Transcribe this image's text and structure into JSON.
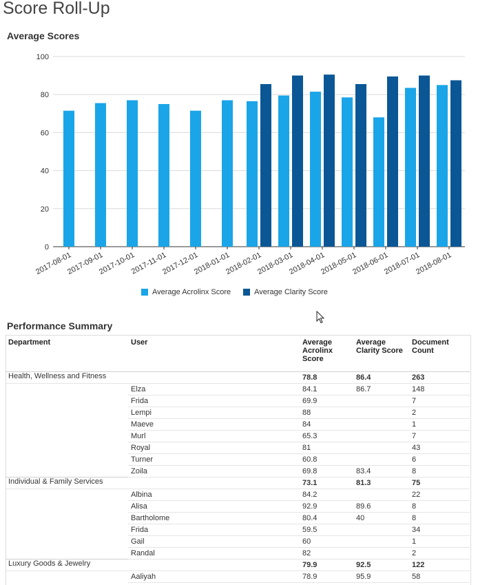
{
  "page": {
    "title": "Score Roll-Up"
  },
  "chart_section": {
    "title": "Average Scores"
  },
  "chart_data": {
    "type": "bar",
    "categories": [
      "2017-08-01",
      "2017-09-01",
      "2017-10-01",
      "2017-11-01",
      "2017-12-01",
      "2018-01-01",
      "2018-02-01",
      "2018-03-01",
      "2018-04-01",
      "2018-05-01",
      "2018-06-01",
      "2018-07-01",
      "2018-08-01"
    ],
    "series": [
      {
        "name": "Average Acrolinx Score",
        "color": "#1aa5e8",
        "values": [
          71.5,
          75.5,
          77,
          75,
          71.5,
          77,
          76.5,
          79.5,
          81.5,
          78.5,
          68,
          83.5,
          85
        ]
      },
      {
        "name": "Average Clarity Score",
        "color": "#0b5796",
        "values": [
          null,
          null,
          null,
          null,
          null,
          null,
          85.5,
          90,
          90.5,
          85.5,
          89.5,
          90,
          87.5
        ]
      }
    ],
    "yticks": [
      0,
      20,
      40,
      60,
      80,
      100
    ],
    "ylim": [
      0,
      100
    ],
    "grid": true,
    "legend_position": "bottom"
  },
  "table_section": {
    "title": "Performance Summary"
  },
  "table": {
    "headers": [
      "Department",
      "User",
      "Average Acrolinx Score",
      "Average Clarity Score",
      "Document Count"
    ],
    "groups": [
      {
        "department": "Health, Wellness and Fitness",
        "acrolinx": "78.8",
        "clarity": "86.4",
        "count": "263",
        "users": [
          {
            "name": "Elza",
            "acrolinx": "84.1",
            "clarity": "86.7",
            "count": "148"
          },
          {
            "name": "Frida",
            "acrolinx": "69.9",
            "clarity": "",
            "count": "7"
          },
          {
            "name": "Lempi",
            "acrolinx": "88",
            "clarity": "",
            "count": "2"
          },
          {
            "name": "Maeve",
            "acrolinx": "84",
            "clarity": "",
            "count": "1"
          },
          {
            "name": "Murl",
            "acrolinx": "65.3",
            "clarity": "",
            "count": "7"
          },
          {
            "name": "Royal",
            "acrolinx": "81",
            "clarity": "",
            "count": "43"
          },
          {
            "name": "Turner",
            "acrolinx": "60.8",
            "clarity": "",
            "count": "6"
          },
          {
            "name": "Zoila",
            "acrolinx": "69.8",
            "clarity": "83.4",
            "count": "8"
          }
        ]
      },
      {
        "department": "Individual & Family Services",
        "acrolinx": "73.1",
        "clarity": "81.3",
        "count": "75",
        "users": [
          {
            "name": "Albina",
            "acrolinx": "84.2",
            "clarity": "",
            "count": "22"
          },
          {
            "name": "Alisa",
            "acrolinx": "92.9",
            "clarity": "89.6",
            "count": "8"
          },
          {
            "name": "Bartholome",
            "acrolinx": "80.4",
            "clarity": "40",
            "count": "8"
          },
          {
            "name": "Frida",
            "acrolinx": "59.5",
            "clarity": "",
            "count": "34"
          },
          {
            "name": "Gail",
            "acrolinx": "60",
            "clarity": "",
            "count": "1"
          },
          {
            "name": "Randal",
            "acrolinx": "82",
            "clarity": "",
            "count": "2"
          }
        ]
      },
      {
        "department": "Luxury Goods & Jewelry",
        "acrolinx": "79.9",
        "clarity": "92.5",
        "count": "122",
        "users": [
          {
            "name": "Aaliyah",
            "acrolinx": "78.9",
            "clarity": "95.9",
            "count": "58"
          }
        ]
      }
    ]
  }
}
